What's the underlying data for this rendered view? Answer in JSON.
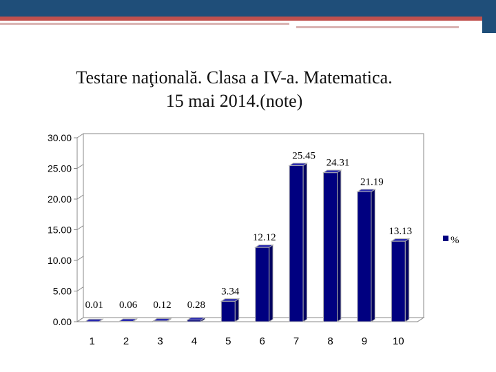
{
  "slide": {
    "colors": {
      "bar_top": "#1f3a5f",
      "bar_accent": "#c0504d",
      "bar_fill": "#000080"
    }
  },
  "chart_data": {
    "type": "bar",
    "title": "Testare naţională. Clasa a IV-a. Matematica. 15 mai 2014.(note)",
    "title_lines": [
      "Testare naţională. Clasa a IV-a. Matematica.",
      "15 mai 2014.(note)"
    ],
    "categories": [
      "1",
      "2",
      "3",
      "4",
      "5",
      "6",
      "7",
      "8",
      "9",
      "10"
    ],
    "series": [
      {
        "name": "%",
        "values": [
          0.01,
          0.06,
          0.12,
          0.28,
          3.34,
          12.12,
          25.45,
          24.31,
          21.19,
          13.13
        ]
      }
    ],
    "data_labels": [
      "0.01",
      "0.06",
      "0.12",
      "0.28",
      "3.34",
      "12.12",
      "25.45",
      "24.31",
      "21.19",
      "13.13"
    ],
    "y_ticks": [
      "0.00",
      "5.00",
      "10.00",
      "15.00",
      "20.00",
      "25.00",
      "30.00"
    ],
    "ylim": [
      0,
      30
    ],
    "xlabel": "",
    "ylabel": "",
    "legend": {
      "position": "right",
      "label": "%"
    },
    "grid": false,
    "style": "3d-column",
    "colors": {
      "bar": "#000080"
    }
  }
}
